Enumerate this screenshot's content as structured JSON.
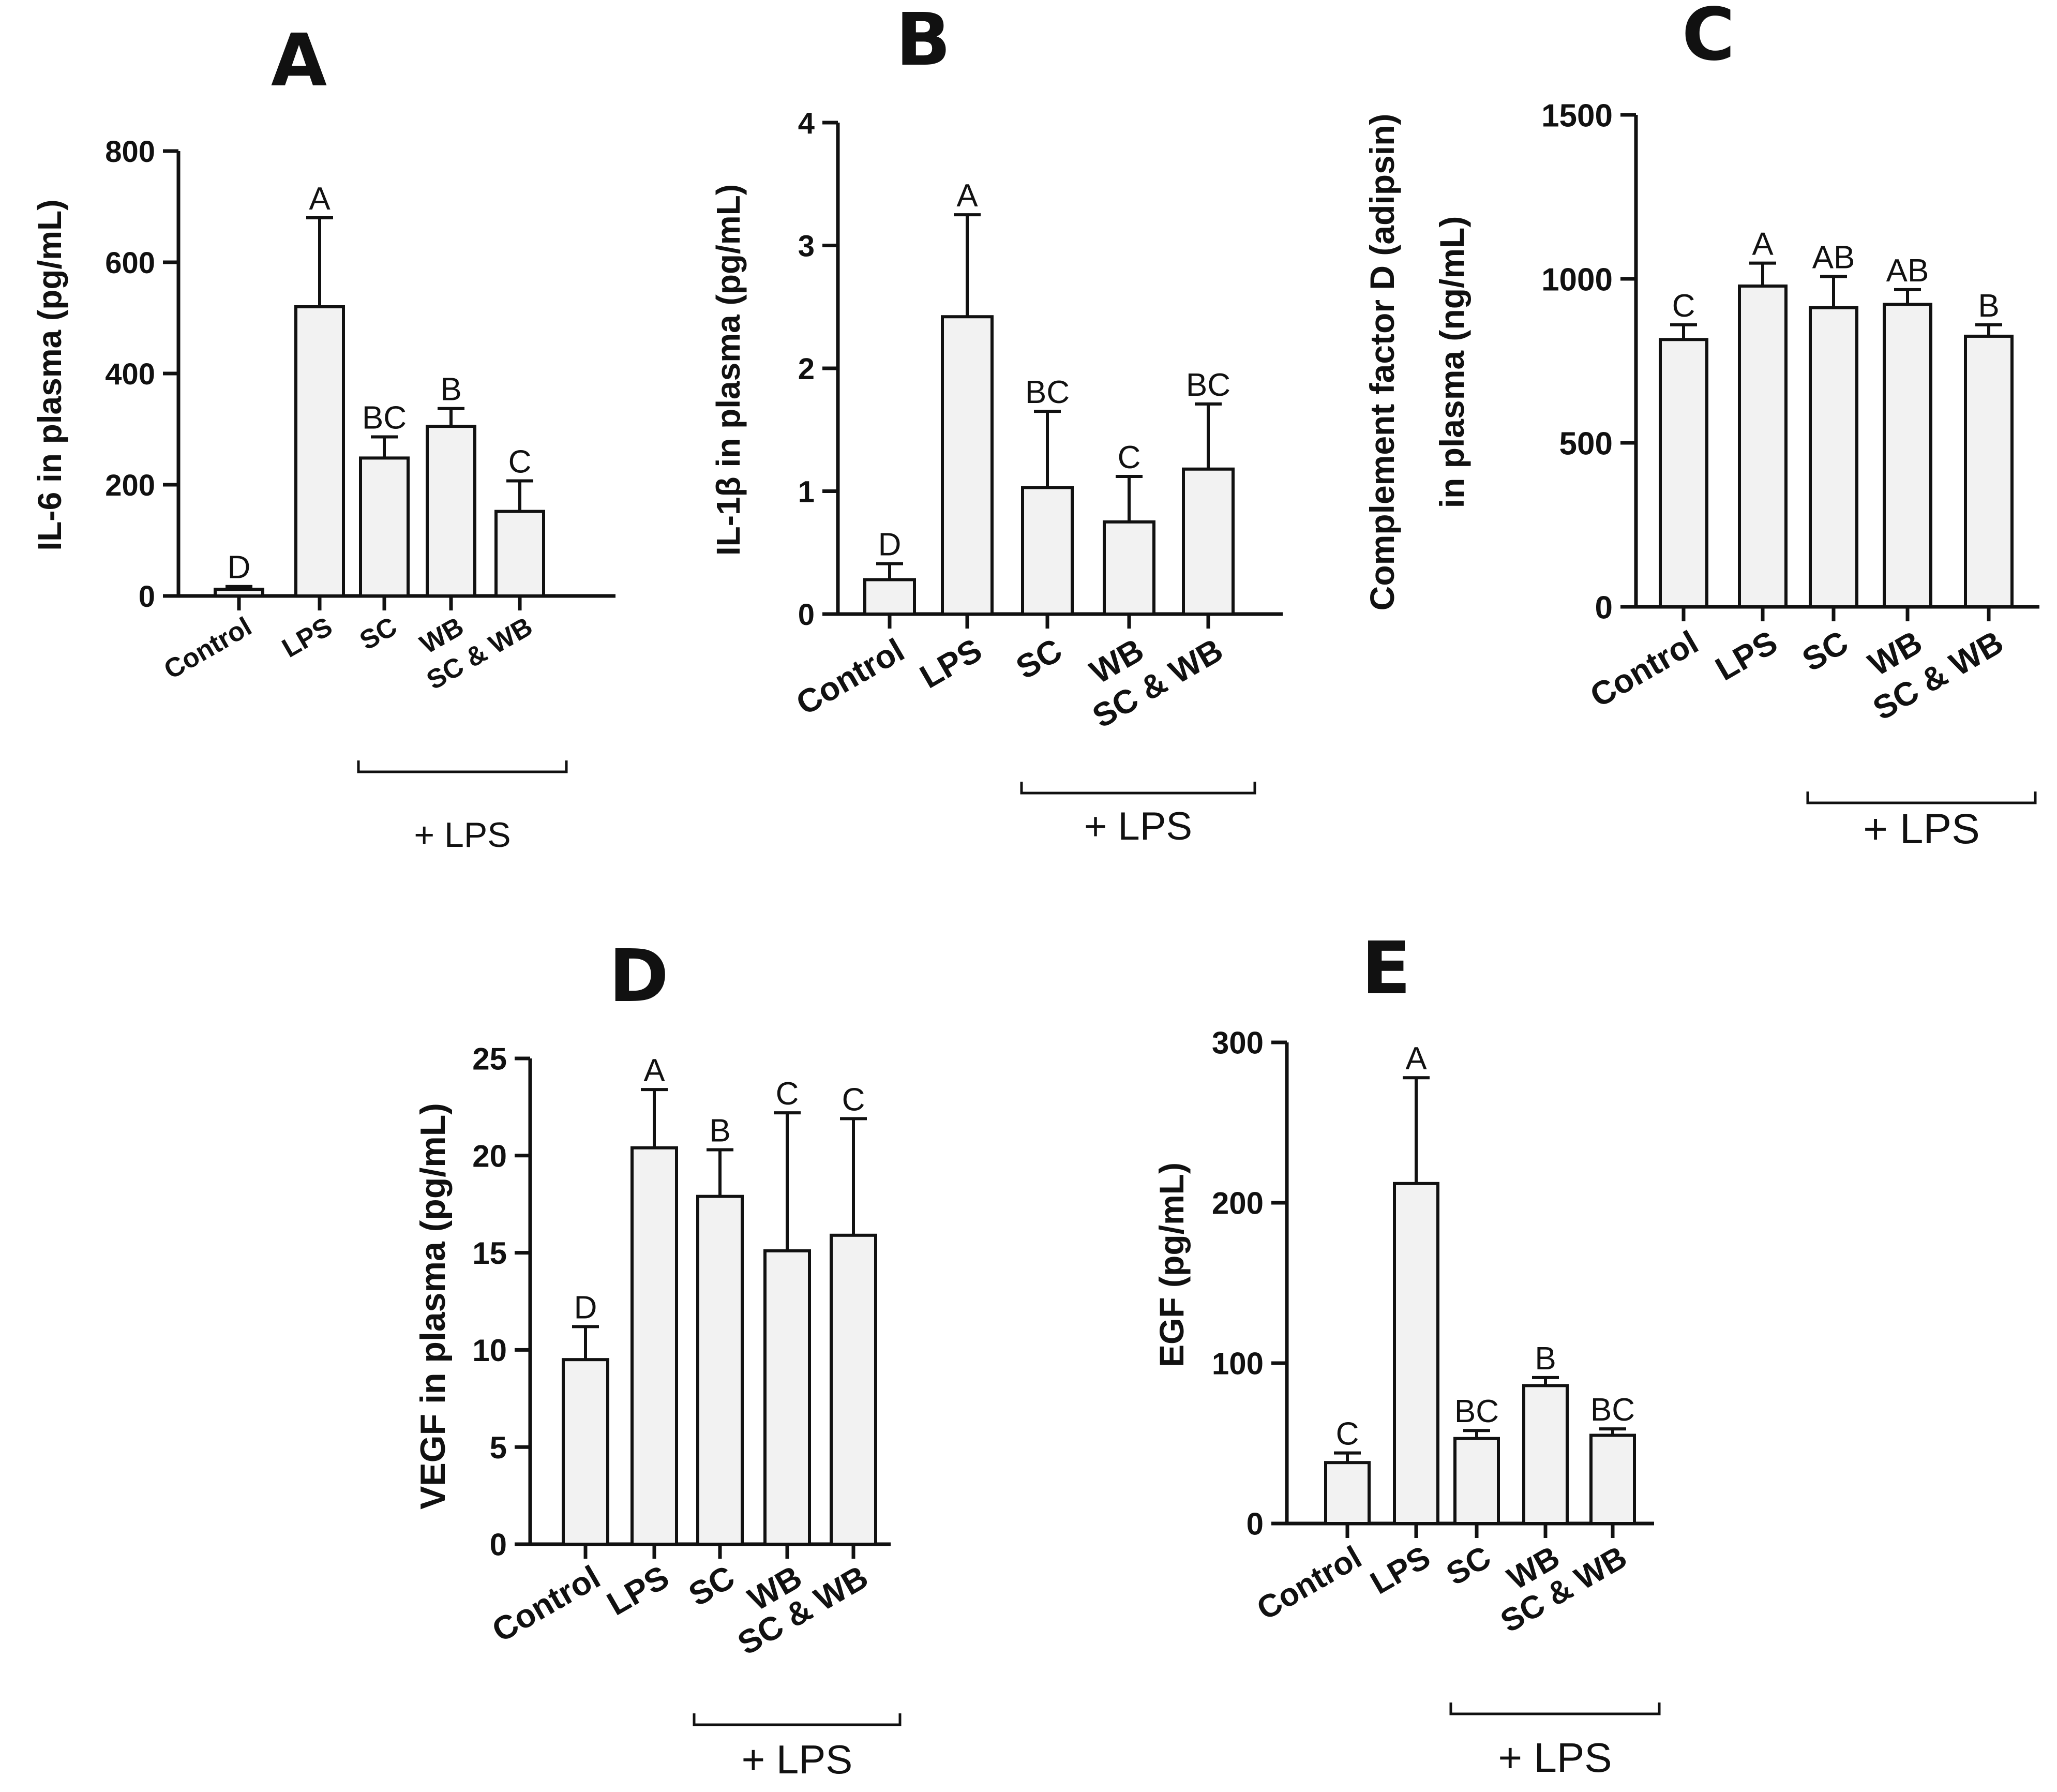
{
  "chart_data": [
    {
      "type": "bar",
      "panel": "A",
      "ylabel": "IL-6 in plasma (pg/mL)",
      "categories": [
        "Control",
        "LPS",
        "SC",
        "WB",
        "SC & WB"
      ],
      "values": [
        12,
        520,
        248,
        305,
        152
      ],
      "errors": [
        5,
        160,
        38,
        32,
        55
      ],
      "significance": [
        "D",
        "A",
        "BC",
        "B",
        "C"
      ],
      "ylim": [
        0,
        800
      ],
      "yticks": [
        0,
        200,
        400,
        600,
        800
      ],
      "group_label": "+ LPS",
      "group_categories": [
        "SC",
        "WB",
        "SC & WB"
      ]
    },
    {
      "type": "bar",
      "panel": "B",
      "ylabel": "IL-1β in plasma (pg/mL)",
      "categories": [
        "Control",
        "LPS",
        "SC",
        "WB",
        "SC & WB"
      ],
      "values": [
        0.28,
        2.42,
        1.03,
        0.75,
        1.18
      ],
      "errors": [
        0.13,
        0.83,
        0.62,
        0.37,
        0.53
      ],
      "significance": [
        "D",
        "A",
        "BC",
        "C",
        "BC"
      ],
      "ylim": [
        0,
        4
      ],
      "yticks": [
        0,
        1,
        2,
        3,
        4
      ],
      "group_label": "+ LPS",
      "group_categories": [
        "SC",
        "WB",
        "SC & WB"
      ]
    },
    {
      "type": "bar",
      "panel": "C",
      "ylabel": "Complement factor D (adipsin)",
      "ylabel2": "in plasma (ng/mL)",
      "categories": [
        "Control",
        "LPS",
        "SC",
        "WB",
        "SC & WB"
      ],
      "values": [
        815,
        978,
        912,
        922,
        825
      ],
      "errors": [
        45,
        70,
        95,
        45,
        35
      ],
      "significance": [
        "C",
        "A",
        "AB",
        "AB",
        "B"
      ],
      "ylim": [
        0,
        1500
      ],
      "yticks": [
        0,
        500,
        1000,
        1500
      ],
      "group_label": "+ LPS",
      "group_categories": [
        "SC",
        "WB",
        "SC & WB"
      ]
    },
    {
      "type": "bar",
      "panel": "D",
      "ylabel": "VEGF in plasma (pg/mL)",
      "categories": [
        "Control",
        "LPS",
        "SC",
        "WB",
        "SC & WB"
      ],
      "values": [
        9.5,
        20.4,
        17.9,
        15.1,
        15.9
      ],
      "errors": [
        1.7,
        3.0,
        2.4,
        7.1,
        6.0
      ],
      "significance": [
        "D",
        "A",
        "B",
        "C",
        "C"
      ],
      "ylim": [
        0,
        25
      ],
      "yticks": [
        0,
        5,
        10,
        15,
        20,
        25
      ],
      "group_label": "+ LPS",
      "group_categories": [
        "SC",
        "WB",
        "SC & WB"
      ]
    },
    {
      "type": "bar",
      "panel": "E",
      "ylabel": "EGF (pg/mL)",
      "categories": [
        "Control",
        "LPS",
        "SC",
        "WB",
        "SC & WB"
      ],
      "values": [
        38,
        212,
        53,
        86,
        55
      ],
      "errors": [
        6,
        66,
        5,
        5,
        4
      ],
      "significance": [
        "C",
        "A",
        "BC",
        "B",
        "BC"
      ],
      "ylim": [
        0,
        300
      ],
      "yticks": [
        0,
        100,
        200,
        300
      ],
      "group_label": "+ LPS",
      "group_categories": [
        "SC",
        "WB",
        "SC & WB"
      ]
    }
  ]
}
